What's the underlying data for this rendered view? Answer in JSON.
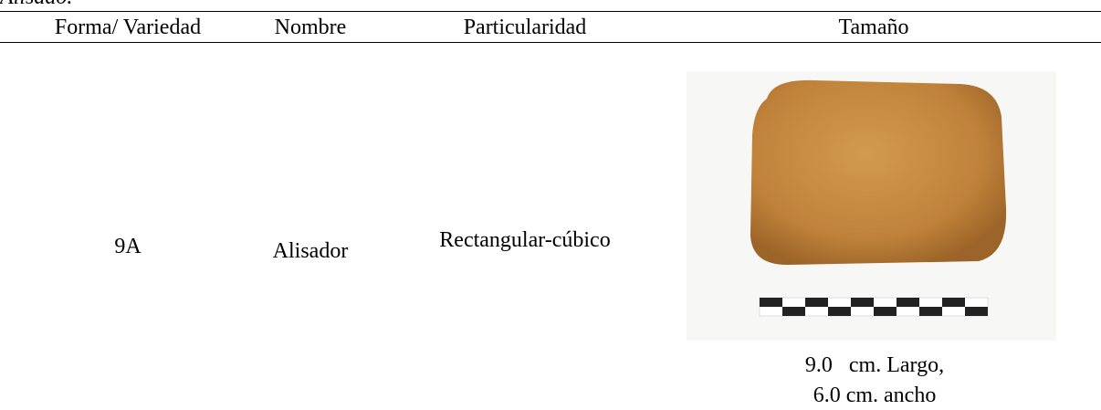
{
  "caption": "Alisado.",
  "table": {
    "headers": [
      "Forma/ Variedad",
      "Nombre",
      "Particularidad",
      "Tamaño"
    ],
    "rows": [
      [
        "9A",
        "Alisador",
        "Rectangular-cúbico",
        [
          "9.0   cm. Largo,",
          "6.0 cm. ancho"
        ]
      ]
    ]
  }
}
